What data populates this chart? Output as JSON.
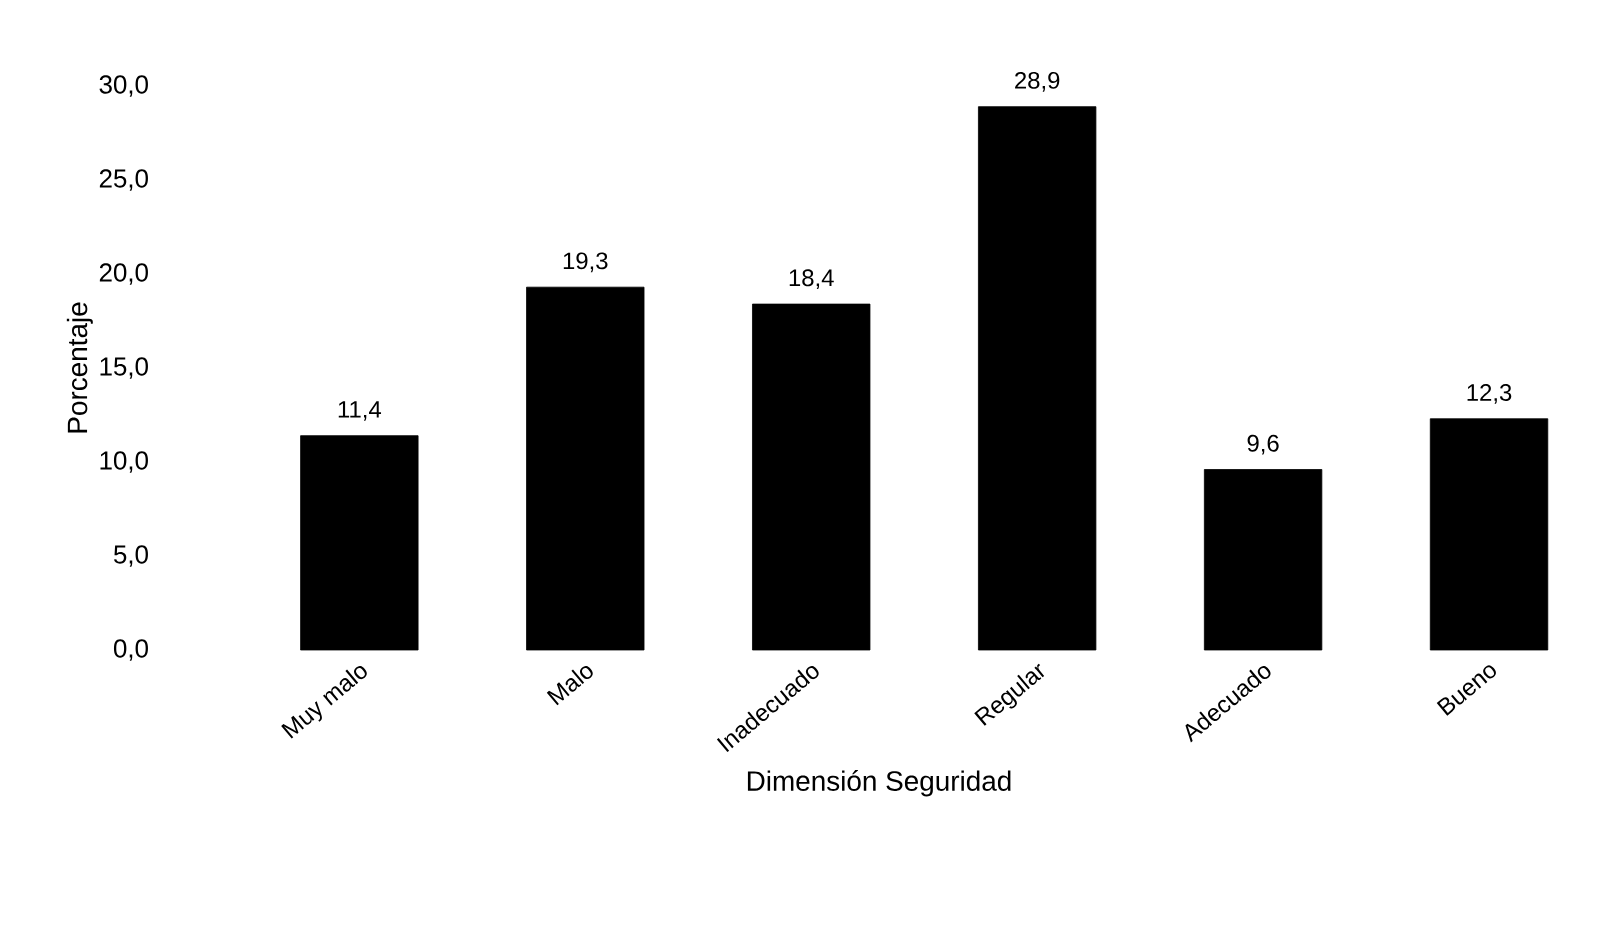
{
  "chart_data": {
    "type": "bar",
    "xlabel": "Dimensión Seguridad",
    "ylabel": "Porcentaje",
    "categories": [
      "Muy malo",
      "Malo",
      "Inadecuado",
      "Regular",
      "Adecuado",
      "Bueno"
    ],
    "values": [
      11.4,
      19.3,
      18.4,
      28.9,
      9.6,
      12.3
    ],
    "value_labels": [
      "11,4",
      "19,3",
      "18,4",
      "28,9",
      "9,6",
      "12,3"
    ],
    "color": "#000000",
    "ylim": [
      0,
      30
    ],
    "yticks": [
      {
        "value": 0,
        "label": "0,0"
      },
      {
        "value": 5,
        "label": "5,0"
      },
      {
        "value": 10,
        "label": "10,0"
      },
      {
        "value": 15,
        "label": "15,0"
      },
      {
        "value": 20,
        "label": "20,0"
      },
      {
        "value": 25,
        "label": "25,0"
      },
      {
        "value": 30,
        "label": "30,0"
      }
    ]
  }
}
